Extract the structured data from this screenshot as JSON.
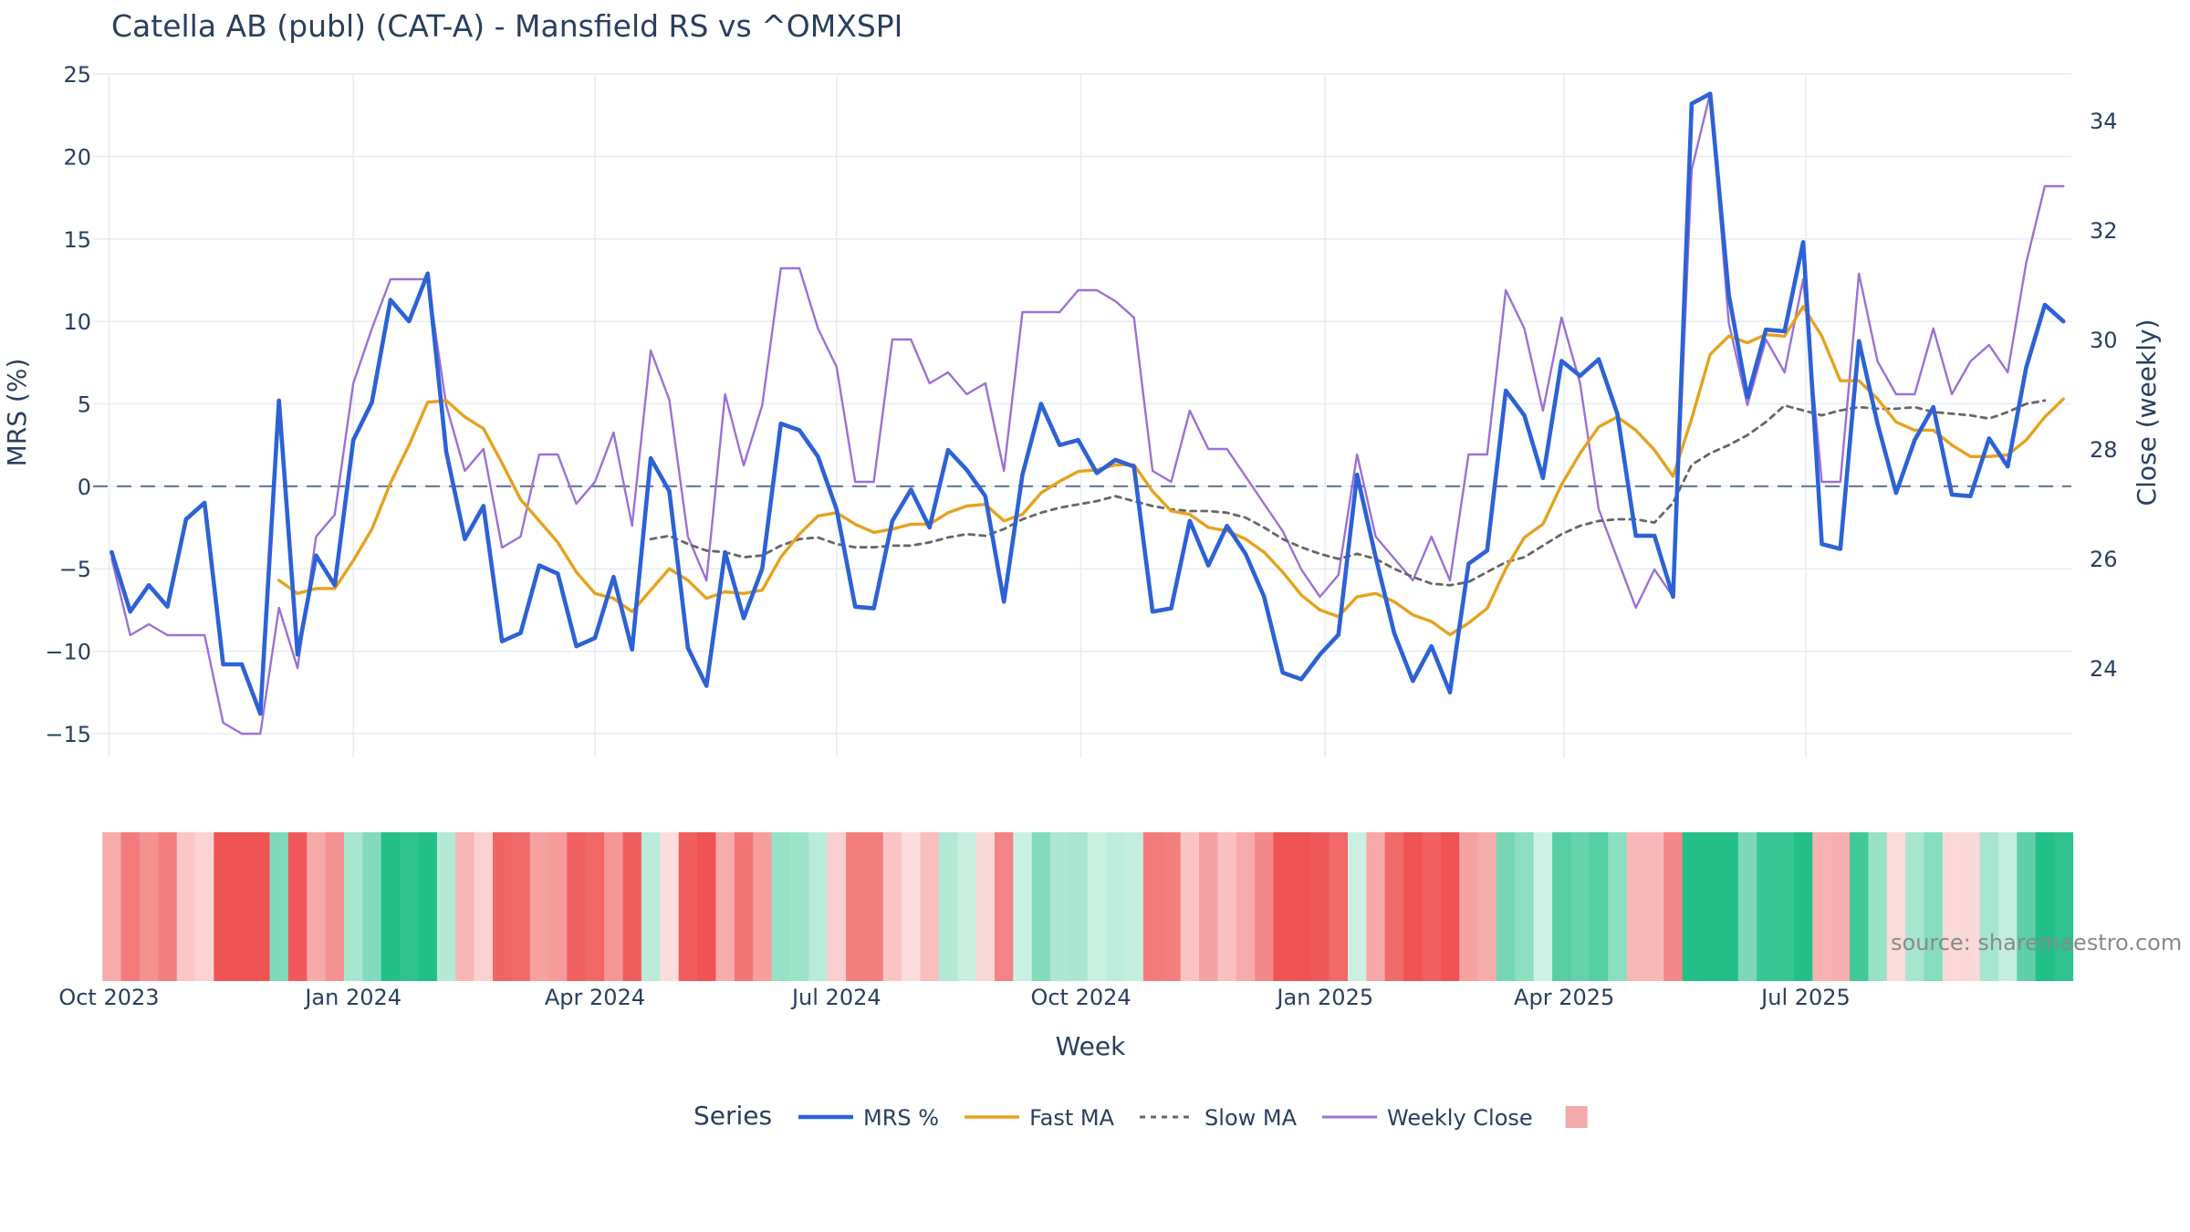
{
  "chart_data": {
    "type": "line",
    "title": "Catella AB (publ) (CAT-A) - Mansfield RS vs ^OMXSPI",
    "xlabel": "Week",
    "ylabel": "MRS (%)",
    "y2label": "Close (weekly)",
    "ylim": [
      -16,
      25.5
    ],
    "y2lim": [
      22.5,
      35.0
    ],
    "yticks": [
      "25",
      "20",
      "15",
      "10",
      "5",
      "0",
      "−5",
      "−10",
      "−15"
    ],
    "yticks_values": [
      25,
      20,
      15,
      10,
      5,
      0,
      -5,
      -10,
      -15
    ],
    "y2ticks": [
      "34",
      "32",
      "30",
      "28",
      "26",
      "24"
    ],
    "y2ticks_values": [
      34,
      32,
      30,
      28,
      26,
      24
    ],
    "xticks": [
      "Oct 2023",
      "Jan 2024",
      "Apr 2024",
      "Jul 2024",
      "Oct 2024",
      "Jan 2025",
      "Apr 2025",
      "Jul 2025"
    ],
    "xticks_values": [
      "2023-10-01",
      "2024-01-01",
      "2024-04-01",
      "2024-07-01",
      "2024-10-01",
      "2025-01-01",
      "2025-04-01",
      "2025-07-01"
    ],
    "x_start": "2023-10-02",
    "x_step_days": 7,
    "zero_line": 0,
    "grid": true,
    "legend_title": "Series",
    "legend_position": "bottom",
    "source_text": "source: sharemaestro.com",
    "series": [
      {
        "name": "MRS %",
        "axis": "left",
        "color": "#2d62d6",
        "style": "solid-thick",
        "values": [
          -4.0,
          -7.6,
          -6.0,
          -7.3,
          -2.0,
          -1.0,
          -10.8,
          -10.8,
          -13.8,
          5.2,
          -10.2,
          -4.2,
          -6.0,
          2.8,
          5.1,
          11.3,
          10.0,
          12.9,
          2.1,
          -3.2,
          -1.2,
          -9.4,
          -8.9,
          -4.8,
          -5.3,
          -9.7,
          -9.2,
          -5.5,
          -9.9,
          1.7,
          -0.3,
          -9.8,
          -12.1,
          -4.0,
          -8.0,
          -5.0,
          3.8,
          3.4,
          1.8,
          -1.4,
          -7.3,
          -7.4,
          -2.1,
          -0.2,
          -2.5,
          2.2,
          1.0,
          -0.6,
          -7.0,
          0.7,
          5.0,
          2.5,
          2.8,
          0.8,
          1.6,
          1.2,
          -7.6,
          -7.4,
          -2.1,
          -4.8,
          -2.4,
          -4.1,
          -6.7,
          -11.3,
          -11.7,
          -10.2,
          -9.0,
          0.7,
          -4.3,
          -8.9,
          -11.8,
          -9.7,
          -12.5,
          -4.7,
          -3.9,
          5.8,
          4.3,
          0.5,
          7.6,
          6.7,
          7.7,
          4.4,
          -3.0,
          -3.0,
          -6.7,
          23.2,
          23.8,
          11.6,
          5.4,
          9.5,
          9.4,
          14.8,
          -3.5,
          -3.8,
          8.8,
          3.8,
          -0.4,
          2.8,
          4.8,
          -0.5,
          -0.6,
          2.9,
          1.2,
          7.2,
          11.0,
          10.0
        ]
      },
      {
        "name": "Fast MA",
        "axis": "left",
        "color": "#e6a21e",
        "style": "solid",
        "values": [
          null,
          null,
          null,
          null,
          null,
          null,
          null,
          null,
          null,
          -5.7,
          -6.5,
          -6.2,
          -6.2,
          -4.5,
          -2.6,
          0.2,
          2.5,
          5.1,
          5.2,
          4.2,
          3.5,
          1.4,
          -0.8,
          -2.1,
          -3.4,
          -5.2,
          -6.5,
          -6.8,
          -7.6,
          -6.3,
          -5.0,
          -5.7,
          -6.8,
          -6.4,
          -6.5,
          -6.3,
          -4.3,
          -2.9,
          -1.8,
          -1.6,
          -2.3,
          -2.8,
          -2.6,
          -2.3,
          -2.3,
          -1.6,
          -1.2,
          -1.1,
          -2.1,
          -1.7,
          -0.4,
          0.3,
          0.9,
          1.0,
          1.3,
          1.3,
          -0.3,
          -1.5,
          -1.7,
          -2.5,
          -2.7,
          -3.2,
          -4.0,
          -5.2,
          -6.6,
          -7.5,
          -7.9,
          -6.7,
          -6.5,
          -7.0,
          -7.8,
          -8.2,
          -9.0,
          -8.3,
          -7.4,
          -5.0,
          -3.1,
          -2.3,
          0.1,
          2.0,
          3.6,
          4.2,
          3.4,
          2.2,
          0.6,
          4.1,
          8.0,
          9.1,
          8.7,
          9.2,
          9.1,
          10.9,
          9.1,
          6.4,
          6.4,
          5.3,
          3.9,
          3.4,
          3.4,
          2.5,
          1.8,
          1.8,
          1.9,
          2.8,
          4.2,
          5.3
        ]
      },
      {
        "name": "Slow MA",
        "axis": "left",
        "color": "#666666",
        "style": "dotted",
        "values": [
          null,
          null,
          null,
          null,
          null,
          null,
          null,
          null,
          null,
          null,
          null,
          null,
          null,
          null,
          null,
          null,
          null,
          null,
          null,
          null,
          null,
          null,
          null,
          null,
          null,
          null,
          null,
          null,
          null,
          -3.2,
          -3.0,
          -3.5,
          -3.9,
          -4.0,
          -4.3,
          -4.2,
          -3.6,
          -3.2,
          -3.1,
          -3.5,
          -3.7,
          -3.7,
          -3.6,
          -3.6,
          -3.4,
          -3.1,
          -2.9,
          -3.0,
          -2.6,
          -2.0,
          -1.6,
          -1.3,
          -1.1,
          -0.9,
          -0.6,
          -0.9,
          -1.2,
          -1.4,
          -1.5,
          -1.5,
          -1.6,
          -1.9,
          -2.5,
          -3.2,
          -3.7,
          -4.1,
          -4.4,
          -4.1,
          -4.4,
          -5.0,
          -5.5,
          -5.9,
          -6.0,
          -5.8,
          -5.2,
          -4.6,
          -4.3,
          -3.6,
          -2.9,
          -2.4,
          -2.1,
          -2.0,
          -2.0,
          -2.2,
          -1.0,
          1.3,
          2.0,
          2.5,
          3.1,
          3.9,
          4.9,
          4.6,
          4.3,
          4.6,
          4.8,
          4.7,
          4.7,
          4.8,
          4.5,
          4.4,
          4.3,
          4.1,
          4.5,
          5.0,
          5.2
        ]
      },
      {
        "name": "Weekly Close",
        "axis": "right",
        "color": "#9b71d4",
        "style": "solid-thin",
        "values": [
          26.0,
          24.6,
          24.8,
          24.6,
          24.6,
          24.6,
          23.0,
          22.8,
          22.8,
          25.1,
          24.0,
          26.4,
          26.8,
          29.2,
          30.2,
          31.1,
          31.1,
          31.1,
          28.8,
          27.6,
          28.0,
          26.2,
          26.4,
          27.9,
          27.9,
          27.0,
          27.4,
          28.3,
          26.6,
          29.8,
          28.9,
          26.4,
          25.6,
          29.0,
          27.7,
          28.8,
          31.3,
          31.3,
          30.2,
          29.5,
          27.4,
          27.4,
          30.0,
          30.0,
          29.2,
          29.4,
          29.0,
          29.2,
          27.6,
          30.5,
          30.5,
          30.5,
          30.9,
          30.9,
          30.7,
          30.4,
          27.6,
          27.4,
          28.7,
          28.0,
          28.0,
          27.5,
          27.0,
          26.5,
          25.8,
          25.3,
          25.7,
          27.9,
          26.4,
          26.0,
          25.6,
          26.4,
          25.6,
          27.9,
          27.9,
          30.9,
          30.2,
          28.7,
          30.4,
          29.2,
          26.9,
          26.0,
          25.1,
          25.8,
          25.3,
          33.1,
          34.5,
          30.3,
          28.8,
          30.0,
          29.4,
          31.1,
          27.4,
          27.4,
          31.2,
          29.6,
          29.0,
          29.0,
          30.2,
          29.0,
          29.6,
          29.9,
          29.4,
          31.4,
          32.8,
          32.8
        ]
      }
    ],
    "heatmap": {
      "type": "heatmap",
      "description_values": "MRS % per week mapped to red (negative) / green (positive)",
      "values": [
        -4.0,
        -7.6,
        -6.0,
        -7.3,
        -2.0,
        -1.0,
        -10.8,
        -10.8,
        -13.8,
        5.2,
        -10.2,
        -4.2,
        -6.0,
        2.8,
        5.1,
        11.3,
        10.0,
        12.9,
        2.1,
        -3.2,
        -1.2,
        -9.4,
        -8.9,
        -4.8,
        -5.3,
        -9.7,
        -9.2,
        -5.5,
        -9.9,
        1.7,
        -0.3,
        -9.8,
        -12.1,
        -4.0,
        -8.0,
        -5.0,
        3.8,
        3.4,
        1.8,
        -1.4,
        -7.3,
        -7.4,
        -2.1,
        -0.2,
        -2.5,
        2.2,
        1.0,
        -0.6,
        -7.0,
        0.7,
        5.0,
        2.5,
        2.8,
        0.8,
        1.6,
        1.2,
        -7.6,
        -7.4,
        -2.1,
        -4.8,
        -2.4,
        -4.1,
        -6.7,
        -11.3,
        -11.7,
        -10.2,
        -9.0,
        0.7,
        -4.3,
        -8.9,
        -11.8,
        -9.7,
        -12.5,
        -4.7,
        -3.9,
        5.8,
        4.3,
        0.5,
        7.6,
        6.7,
        7.7,
        4.4,
        -3.0,
        -3.0,
        -6.7,
        23.2,
        23.8,
        11.6,
        5.4,
        9.5,
        9.4,
        14.8,
        -3.5,
        -3.8,
        8.8,
        3.8,
        -0.4,
        2.8,
        4.8,
        -0.5,
        -0.6,
        2.9,
        1.2,
        7.2,
        11.0,
        10.0
      ],
      "neg_color": "#ef5353",
      "pos_color": "#22bf88",
      "legend_swatch_color": "#f4aaaa"
    }
  }
}
